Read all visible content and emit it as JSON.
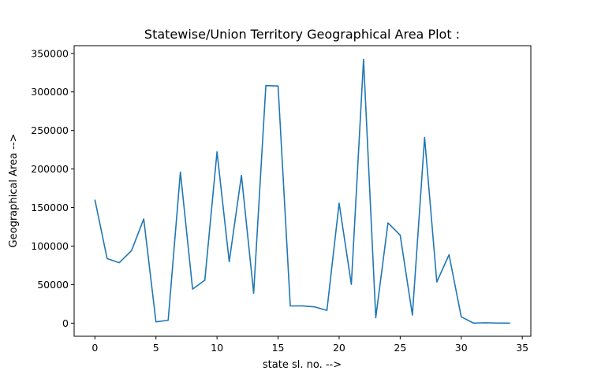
{
  "chart_data": {
    "type": "line",
    "title": "Statewise/Union Territory Geographical Area Plot :",
    "xlabel": "state sl. no. -->",
    "ylabel": "Geographical Area -->",
    "xlim": [
      -1.7,
      35.7
    ],
    "ylim": [
      -17000,
      360000
    ],
    "xticks": [
      0,
      5,
      10,
      15,
      20,
      25,
      30,
      35
    ],
    "yticks": [
      0,
      50000,
      100000,
      150000,
      200000,
      250000,
      300000,
      350000
    ],
    "grid": false,
    "series": [
      {
        "color": "#1f77b4",
        "x": [
          0,
          1,
          2,
          3,
          4,
          5,
          6,
          7,
          8,
          9,
          10,
          11,
          12,
          13,
          14,
          15,
          16,
          17,
          18,
          19,
          20,
          21,
          22,
          23,
          24,
          25,
          26,
          27,
          28,
          29,
          30,
          31,
          32,
          33,
          34
        ],
        "y": [
          160205,
          83743,
          78438,
          94163,
          135191,
          1702,
          3702,
          196024,
          44212,
          55673,
          222236,
          79716,
          191791,
          38863,
          308252,
          307713,
          22327,
          22429,
          21081,
          16579,
          155707,
          50362,
          342239,
          7096,
          130060,
          114240,
          10486,
          240928,
          53483,
          88752,
          8249,
          114,
          491,
          112,
          32
        ]
      }
    ]
  }
}
